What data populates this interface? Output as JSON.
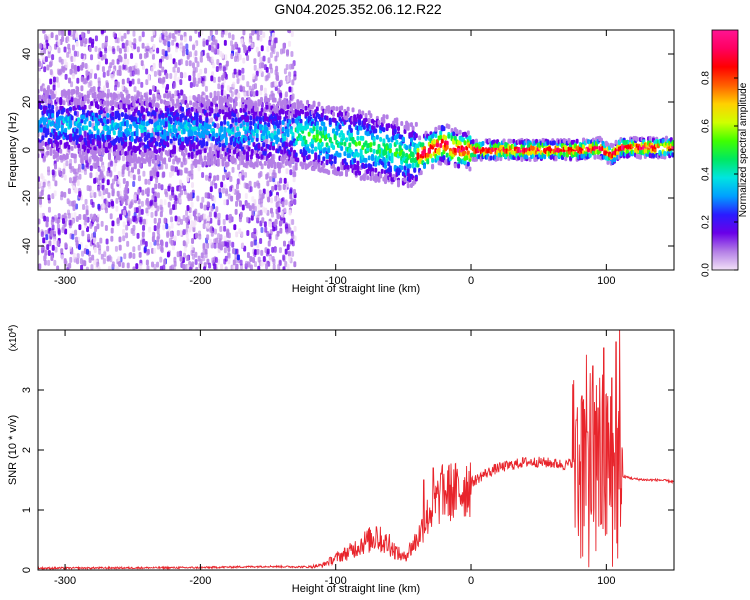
{
  "title": "GN04.2025.352.06.12.R22",
  "charts": [
    {
      "type": "heatmap",
      "xlabel": "Height of straight line (km)",
      "ylabel": "Frequency (Hz)",
      "xlim": [
        -320,
        150
      ],
      "ylim": [
        -50,
        50
      ],
      "xticks": [
        -300,
        -200,
        -100,
        0,
        100
      ],
      "yticks": [
        -40,
        -20,
        0,
        20,
        40
      ],
      "colorbar": {
        "label": "Normalized spectral amplitude",
        "range": [
          0,
          1
        ],
        "ticks": [
          "0.0",
          "0.2",
          "0.4",
          "0.6",
          "0.8"
        ],
        "colors": [
          "#f2e1f7",
          "#b47fe6",
          "#6a00e8",
          "#2a1cff",
          "#00a0ff",
          "#00e5e0",
          "#00e860",
          "#40ff00",
          "#d0ff00",
          "#ffd000",
          "#ff6000",
          "#ff0000",
          "#ff0060",
          "#ff1493"
        ]
      },
      "ridge": {
        "x": [
          -310,
          -280,
          -250,
          -220,
          -190,
          -160,
          -140,
          -120,
          -100,
          -80,
          -60,
          -50,
          -40,
          -30,
          -20,
          -10,
          0,
          20,
          40,
          60,
          80,
          95,
          100,
          105,
          110,
          130,
          150
        ],
        "y": [
          11,
          10,
          9,
          9,
          8,
          7,
          7,
          6,
          4,
          2,
          0,
          -2,
          -3,
          0,
          3,
          0,
          0,
          0,
          0,
          0,
          0,
          1,
          -1,
          -2,
          1,
          1,
          1
        ]
      }
    },
    {
      "type": "line",
      "series_color": "#e8242b",
      "xlabel": "Height of straight line (km)",
      "ylabel": "SNR (10 * v/v)",
      "yscale_label_prefix": "(x10",
      "yscale_label_exp": "4",
      "yscale_label_suffix": ")",
      "xlim": [
        -320,
        150
      ],
      "ylim": [
        0,
        4
      ],
      "xticks": [
        -300,
        -200,
        -100,
        0,
        100
      ],
      "yticks": [
        0,
        1,
        2,
        3
      ],
      "envelope": {
        "x": [
          -320,
          -200,
          -150,
          -120,
          -110,
          -100,
          -90,
          -80,
          -70,
          -60,
          -55,
          -50,
          -40,
          -30,
          -20,
          -10,
          0,
          10,
          20,
          30,
          40,
          50,
          60,
          70,
          75,
          80,
          85,
          90,
          95,
          100,
          105,
          110,
          115,
          120,
          130,
          140,
          150
        ],
        "y": [
          0.03,
          0.04,
          0.06,
          0.05,
          0.08,
          0.2,
          0.3,
          0.45,
          0.55,
          0.4,
          0.3,
          0.2,
          0.5,
          1.0,
          1.3,
          1.3,
          1.45,
          1.6,
          1.7,
          1.75,
          1.8,
          1.8,
          1.78,
          1.75,
          1.8,
          1.7,
          1.8,
          1.7,
          1.75,
          1.6,
          1.5,
          1.55,
          1.55,
          1.52,
          1.5,
          1.5,
          1.47
        ]
      },
      "spikes": {
        "x": [
          -70,
          -60,
          -35,
          -28,
          -22,
          78,
          82,
          86,
          90,
          94,
          98,
          101,
          104,
          107,
          110
        ],
        "y": [
          0.72,
          0.6,
          1.5,
          1.7,
          1.6,
          2.5,
          2.9,
          2.3,
          3.4,
          2.7,
          3.7,
          2.9,
          3.2,
          3.8,
          4.1
        ]
      }
    }
  ]
}
